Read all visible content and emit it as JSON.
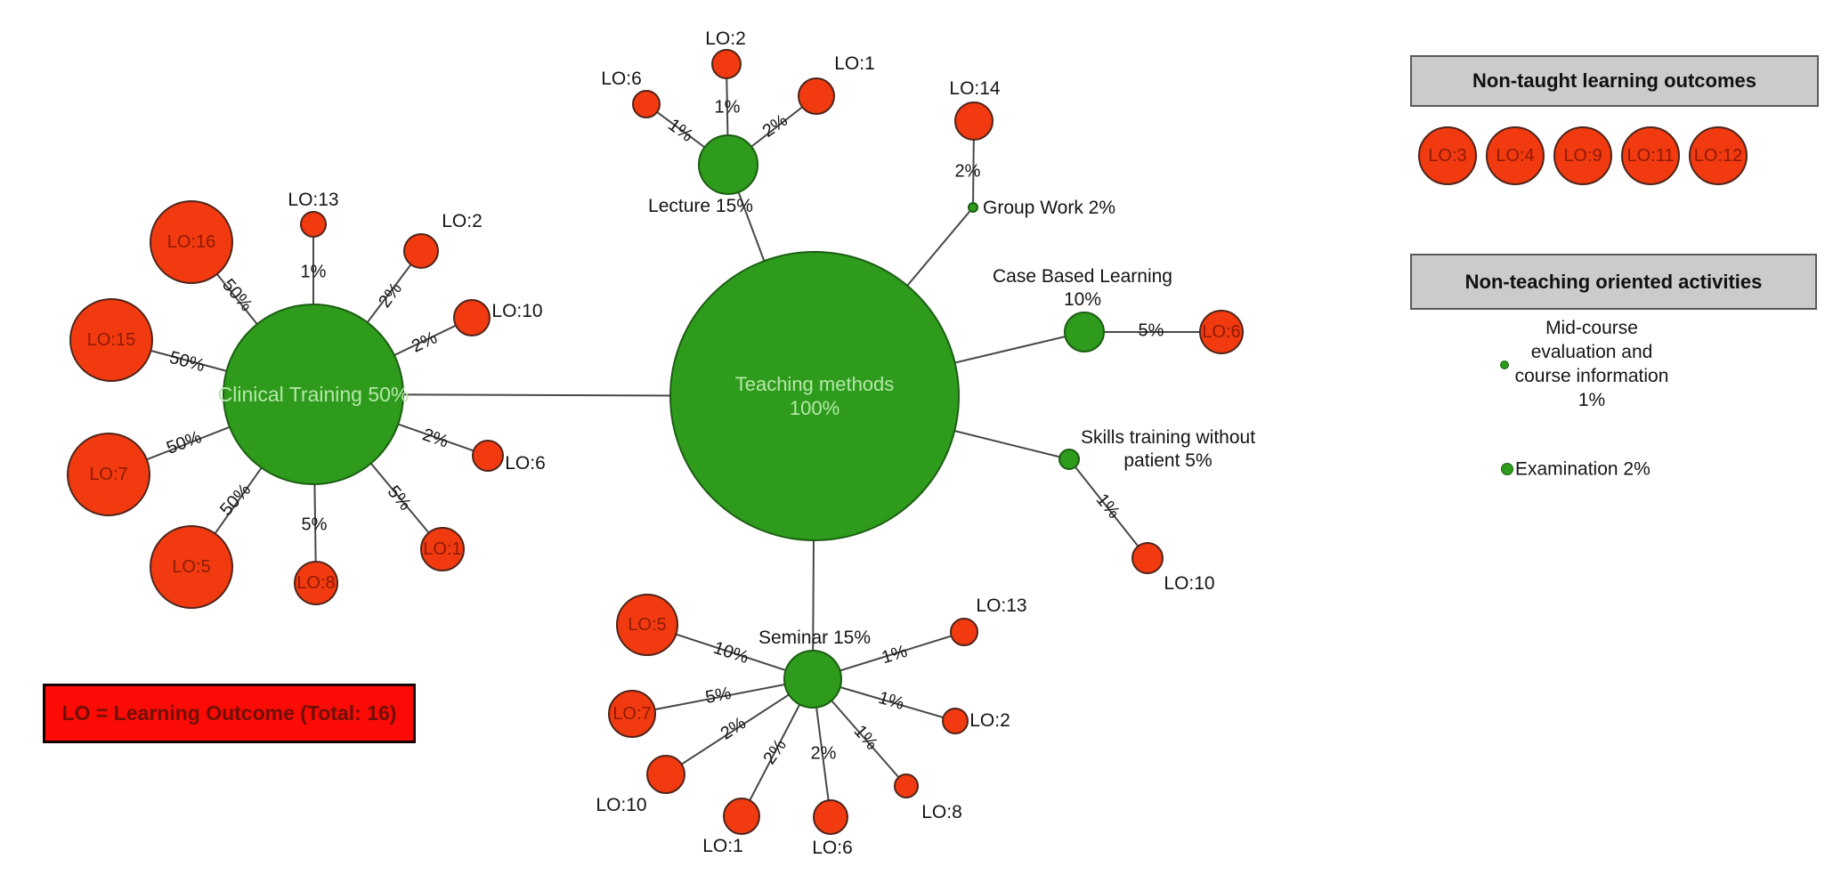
{
  "colors": {
    "method_fill": "#2e9b1d",
    "method_border": "#1b5e12",
    "lo_fill": "#f13a10",
    "lo_border": "#50241a",
    "lo_text": "#8e1a03",
    "edge": "#474747",
    "center_label": "#b5e8a8",
    "legend_header_bg": "#cbcbcb",
    "legend_header_border": "#595959",
    "note_bg": "#fb0a06",
    "note_text": "#6e1004"
  },
  "center_node": {
    "label": "Teaching methods\n100%"
  },
  "methods": [
    {
      "label": "Clinical Training 50%",
      "satellites": [
        {
          "lo": "LO:16",
          "pct": "50%"
        },
        {
          "lo": "LO:13",
          "pct": "1%"
        },
        {
          "lo": "LO:2",
          "pct": "2%"
        },
        {
          "lo": "LO:10",
          "pct": "2%"
        },
        {
          "lo": "LO:6",
          "pct": "2%"
        },
        {
          "lo": "LO:1",
          "pct": "5%"
        },
        {
          "lo": "LO:8",
          "pct": "5%"
        },
        {
          "lo": "LO:5",
          "pct": "50%"
        },
        {
          "lo": "LO:7",
          "pct": "50%"
        },
        {
          "lo": "LO:15",
          "pct": "50%"
        }
      ]
    },
    {
      "label": "Lecture 15%",
      "satellites": [
        {
          "lo": "LO:6",
          "pct": "1%"
        },
        {
          "lo": "LO:2",
          "pct": "1%"
        },
        {
          "lo": "LO:1",
          "pct": "2%"
        }
      ]
    },
    {
      "label": "Group Work 2%",
      "satellites": [
        {
          "lo": "LO:14",
          "pct": "2%"
        }
      ]
    },
    {
      "label": "Case Based Learning\n10%",
      "satellites": [
        {
          "lo": "LO:6",
          "pct": "5%"
        }
      ]
    },
    {
      "label": "Skills training without\npatient 5%",
      "satellites": [
        {
          "lo": "LO:10",
          "pct": "1%"
        }
      ]
    },
    {
      "label": "Seminar 15%",
      "satellites": [
        {
          "lo": "LO:5",
          "pct": "10%"
        },
        {
          "lo": "LO:7",
          "pct": "5%"
        },
        {
          "lo": "LO:10",
          "pct": "2%"
        },
        {
          "lo": "LO:1",
          "pct": "2%"
        },
        {
          "lo": "LO:6",
          "pct": "2%"
        },
        {
          "lo": "LO:8",
          "pct": "1%"
        },
        {
          "lo": "LO:2",
          "pct": "1%"
        },
        {
          "lo": "LO:13",
          "pct": "1%"
        }
      ]
    }
  ],
  "legend_non_taught": {
    "title": "Non-taught learning outcomes",
    "items": [
      "LO:3",
      "LO:4",
      "LO:9",
      "LO:11",
      "LO:12"
    ]
  },
  "legend_non_teaching": {
    "title": "Non-teaching oriented activities",
    "items": [
      {
        "label": "Mid-course\nevaluation and\ncourse information\n1%"
      },
      {
        "label": "Examination 2%"
      }
    ]
  },
  "note": "LO = Learning Outcome (Total: 16)"
}
